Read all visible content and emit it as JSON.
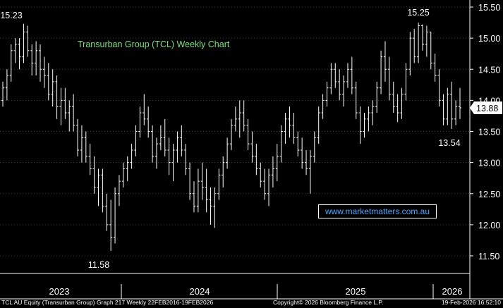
{
  "chart_data": {
    "type": "ohlc",
    "title": "Transurban Group (TCL) Weekly Chart",
    "ylim": [
      11.3,
      15.6
    ],
    "y_ticks": [
      11.5,
      12.0,
      12.5,
      13.0,
      13.5,
      14.0,
      14.5,
      15.0,
      15.5
    ],
    "x_ticks": [
      "2023",
      "2024",
      "2025",
      "2026"
    ],
    "last_price": 13.88,
    "annotations": [
      {
        "text": "15.23",
        "value": 15.23
      },
      {
        "text": "11.58",
        "value": 11.58
      },
      {
        "text": "15.25",
        "value": 15.25
      },
      {
        "text": "13.54",
        "value": 13.54
      }
    ],
    "bars": [
      [
        14.0,
        14.3,
        13.9,
        14.2
      ],
      [
        14.2,
        14.5,
        14.0,
        14.4
      ],
      [
        14.4,
        14.9,
        14.3,
        14.8
      ],
      [
        14.8,
        15.0,
        14.6,
        14.9
      ],
      [
        14.9,
        15.0,
        14.5,
        14.7
      ],
      [
        14.7,
        15.23,
        14.6,
        15.1
      ],
      [
        15.1,
        15.2,
        14.7,
        14.8
      ],
      [
        14.8,
        14.9,
        14.4,
        14.6
      ],
      [
        14.6,
        14.95,
        14.4,
        14.8
      ],
      [
        14.8,
        14.9,
        14.3,
        14.5
      ],
      [
        14.5,
        14.7,
        14.2,
        14.4
      ],
      [
        14.4,
        14.6,
        14.0,
        14.1
      ],
      [
        14.1,
        14.5,
        13.9,
        14.3
      ],
      [
        14.3,
        14.4,
        13.7,
        13.9
      ],
      [
        13.9,
        14.2,
        13.6,
        14.0
      ],
      [
        14.0,
        14.2,
        13.7,
        13.8
      ],
      [
        13.8,
        14.0,
        13.5,
        13.9
      ],
      [
        13.9,
        14.1,
        13.5,
        13.6
      ],
      [
        13.6,
        13.7,
        13.1,
        13.2
      ],
      [
        13.2,
        13.6,
        13.0,
        13.4
      ],
      [
        13.4,
        13.5,
        13.0,
        13.1
      ],
      [
        13.1,
        13.3,
        12.8,
        12.9
      ],
      [
        12.9,
        13.1,
        12.5,
        12.6
      ],
      [
        12.6,
        12.9,
        12.3,
        12.8
      ],
      [
        12.8,
        12.9,
        12.2,
        12.3
      ],
      [
        12.3,
        12.5,
        11.9,
        12.0
      ],
      [
        12.0,
        12.4,
        11.58,
        11.8
      ],
      [
        11.8,
        12.6,
        11.7,
        12.5
      ],
      [
        12.5,
        12.8,
        12.3,
        12.7
      ],
      [
        12.7,
        13.0,
        12.6,
        12.9
      ],
      [
        12.9,
        13.1,
        12.7,
        13.0
      ],
      [
        13.0,
        13.3,
        12.9,
        13.2
      ],
      [
        13.2,
        13.6,
        13.1,
        13.5
      ],
      [
        13.5,
        13.9,
        13.4,
        13.8
      ],
      [
        13.8,
        14.1,
        13.6,
        13.7
      ],
      [
        13.7,
        13.9,
        13.4,
        13.5
      ],
      [
        13.5,
        13.6,
        13.0,
        13.1
      ],
      [
        13.1,
        13.4,
        12.9,
        13.3
      ],
      [
        13.3,
        13.6,
        13.2,
        13.4
      ],
      [
        13.4,
        13.7,
        13.1,
        13.2
      ],
      [
        13.2,
        13.4,
        12.8,
        13.0
      ],
      [
        13.0,
        13.3,
        12.7,
        13.2
      ],
      [
        13.2,
        13.5,
        13.0,
        13.4
      ],
      [
        13.4,
        13.6,
        13.1,
        13.2
      ],
      [
        13.2,
        13.3,
        12.8,
        12.9
      ],
      [
        12.9,
        13.0,
        12.4,
        12.5
      ],
      [
        12.5,
        12.7,
        12.2,
        12.3
      ],
      [
        12.3,
        12.9,
        12.2,
        12.7
      ],
      [
        12.7,
        13.0,
        12.4,
        12.6
      ],
      [
        12.6,
        12.9,
        12.2,
        12.4
      ],
      [
        12.4,
        12.6,
        12.0,
        12.3
      ],
      [
        12.3,
        12.6,
        11.95,
        12.5
      ],
      [
        12.5,
        12.9,
        12.4,
        12.8
      ],
      [
        12.8,
        13.1,
        12.6,
        13.0
      ],
      [
        13.0,
        13.4,
        12.9,
        13.3
      ],
      [
        13.3,
        13.7,
        13.2,
        13.6
      ],
      [
        13.6,
        13.9,
        13.5,
        13.7
      ],
      [
        13.7,
        14.0,
        13.4,
        13.8
      ],
      [
        13.8,
        14.0,
        13.5,
        13.6
      ],
      [
        13.6,
        13.7,
        13.2,
        13.3
      ],
      [
        13.3,
        13.5,
        13.0,
        13.1
      ],
      [
        13.1,
        13.3,
        12.8,
        12.9
      ],
      [
        12.9,
        13.0,
        12.6,
        12.7
      ],
      [
        12.7,
        12.9,
        12.4,
        12.5
      ],
      [
        12.5,
        12.9,
        12.3,
        12.8
      ],
      [
        12.8,
        13.1,
        12.6,
        12.9
      ],
      [
        12.9,
        13.3,
        12.7,
        13.1
      ],
      [
        13.1,
        13.6,
        13.0,
        13.5
      ],
      [
        13.5,
        13.8,
        13.3,
        13.7
      ],
      [
        13.7,
        13.9,
        13.4,
        13.6
      ],
      [
        13.6,
        13.8,
        13.3,
        13.4
      ],
      [
        13.4,
        13.5,
        13.1,
        13.2
      ],
      [
        13.2,
        13.4,
        12.9,
        13.0
      ],
      [
        13.0,
        13.2,
        12.8,
        12.9
      ],
      [
        12.9,
        13.2,
        12.5,
        13.1
      ],
      [
        13.1,
        13.5,
        13.0,
        13.4
      ],
      [
        13.4,
        13.9,
        13.3,
        13.8
      ],
      [
        13.8,
        14.1,
        13.7,
        14.0
      ],
      [
        14.0,
        14.3,
        13.9,
        14.2
      ],
      [
        14.2,
        14.6,
        14.1,
        14.5
      ],
      [
        14.5,
        14.6,
        14.2,
        14.3
      ],
      [
        14.3,
        14.5,
        14.0,
        14.1
      ],
      [
        14.1,
        14.4,
        13.9,
        14.3
      ],
      [
        14.3,
        14.6,
        14.2,
        14.5
      ],
      [
        14.5,
        14.7,
        14.1,
        14.2
      ],
      [
        14.2,
        14.3,
        13.7,
        13.8
      ],
      [
        13.8,
        13.9,
        13.3,
        13.5
      ],
      [
        13.5,
        13.8,
        13.4,
        13.7
      ],
      [
        13.7,
        13.9,
        13.5,
        13.8
      ],
      [
        13.8,
        14.0,
        13.6,
        13.9
      ],
      [
        13.9,
        14.3,
        13.8,
        14.2
      ],
      [
        14.2,
        14.8,
        14.1,
        14.7
      ],
      [
        14.7,
        14.95,
        14.3,
        14.5
      ],
      [
        14.5,
        14.7,
        14.0,
        14.1
      ],
      [
        14.1,
        14.3,
        13.8,
        13.9
      ],
      [
        13.9,
        14.1,
        13.65,
        13.8
      ],
      [
        13.8,
        14.2,
        13.7,
        14.1
      ],
      [
        14.1,
        14.6,
        14.0,
        14.5
      ],
      [
        14.5,
        15.1,
        14.4,
        15.0
      ],
      [
        15.0,
        15.15,
        14.6,
        14.7
      ],
      [
        14.7,
        15.25,
        14.6,
        15.2
      ],
      [
        15.2,
        15.22,
        14.8,
        14.9
      ],
      [
        14.9,
        15.2,
        14.7,
        15.1
      ],
      [
        15.1,
        15.1,
        14.5,
        14.6
      ],
      [
        14.6,
        14.75,
        14.3,
        14.4
      ],
      [
        14.4,
        14.5,
        13.9,
        14.0
      ],
      [
        14.0,
        14.1,
        13.6,
        13.7
      ],
      [
        13.7,
        14.2,
        13.6,
        14.1
      ],
      [
        14.1,
        14.3,
        13.54,
        13.7
      ],
      [
        13.7,
        14.0,
        13.6,
        13.9
      ],
      [
        13.9,
        14.2,
        13.7,
        13.88
      ]
    ]
  },
  "footer": {
    "left": "TCL AU Equity (Transurban Group) Graph 217 Weekly 22FEB2016-19FEB2026",
    "mid": "Copyright© 2026 Bloomberg Finance L.P.",
    "right": "19-Feb-2026 16:52:10"
  },
  "watermark": "www.marketmatters.com.au",
  "colors": {
    "bars": "#ffffff",
    "background": "#000000",
    "title": "#7fe07f",
    "watermark": "#4da6ff"
  }
}
